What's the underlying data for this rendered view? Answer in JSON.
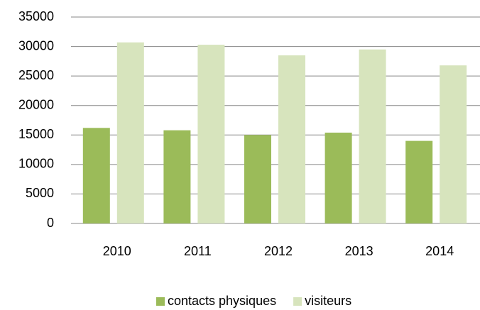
{
  "chart_data": {
    "type": "bar",
    "categories": [
      "2010",
      "2011",
      "2012",
      "2013",
      "2014"
    ],
    "series": [
      {
        "name": "contacts physiques",
        "color": "#9bbb59",
        "values": [
          16200,
          15800,
          15000,
          15400,
          14000
        ]
      },
      {
        "name": "visiteurs",
        "color": "#d7e4bd",
        "values": [
          30700,
          30300,
          28500,
          29500,
          26800
        ]
      }
    ],
    "ylim": [
      0,
      35000
    ],
    "yticks": [
      0,
      5000,
      10000,
      15000,
      20000,
      25000,
      30000,
      35000
    ],
    "grid": true,
    "legend": "bottom"
  }
}
